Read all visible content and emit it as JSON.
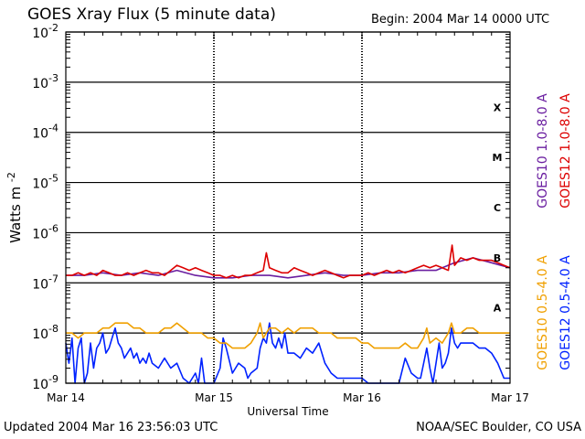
{
  "header": {
    "title": "GOES Xray Flux (5 minute data)",
    "begin": "Begin:  2004 Mar 14 0000 UTC"
  },
  "footer": {
    "updated": "Updated 2004 Mar 16 23:56:03 UTC",
    "credit": "NOAA/SEC Boulder, CO USA"
  },
  "chart_data": {
    "type": "line",
    "title": "GOES Xray Flux (5 minute data)",
    "xlabel": "Universal Time",
    "ylabel": "Watts m",
    "ylabel_superscript": "-2",
    "log_scale_y": true,
    "ylim": [
      1e-09,
      0.01
    ],
    "xlim_hours": [
      0,
      72
    ],
    "x_ticks": [
      {
        "hour": 0,
        "label": "Mar 14"
      },
      {
        "hour": 24,
        "label": "Mar 15"
      },
      {
        "hour": 48,
        "label": "Mar 16"
      },
      {
        "hour": 72,
        "label": "Mar 17"
      }
    ],
    "y_ticks": [
      {
        "exp": -2,
        "base": "10",
        "sup": "-2"
      },
      {
        "exp": -3,
        "base": "10",
        "sup": "-3"
      },
      {
        "exp": -4,
        "base": "10",
        "sup": "-4"
      },
      {
        "exp": -5,
        "base": "10",
        "sup": "-5"
      },
      {
        "exp": -6,
        "base": "10",
        "sup": "-6"
      },
      {
        "exp": -7,
        "base": "10",
        "sup": "-7"
      },
      {
        "exp": -8,
        "base": "10",
        "sup": "-8"
      },
      {
        "exp": -9,
        "base": "10",
        "sup": "-9"
      }
    ],
    "flare_classes": [
      {
        "label": "X",
        "log_flux": -3.5
      },
      {
        "label": "M",
        "log_flux": -4.5
      },
      {
        "label": "C",
        "log_flux": -5.5
      },
      {
        "label": "B",
        "log_flux": -6.5
      },
      {
        "label": "A",
        "log_flux": -7.5
      }
    ],
    "grid": "horizontal decade lines; dashed vertical day lines",
    "legend_placement": "right, vertical",
    "series": [
      {
        "name": "GOES12 0.5-4.0 A",
        "color": "#0022ff",
        "points": [
          [
            0,
            -8.2
          ],
          [
            0.5,
            -8.6
          ],
          [
            1,
            -8.1
          ],
          [
            1.5,
            -9.0
          ],
          [
            2,
            -8.3
          ],
          [
            2.5,
            -8.1
          ],
          [
            3,
            -9.0
          ],
          [
            3.5,
            -8.8
          ],
          [
            4,
            -8.2
          ],
          [
            4.5,
            -8.7
          ],
          [
            5,
            -8.3
          ],
          [
            5.5,
            -8.2
          ],
          [
            6,
            -8.0
          ],
          [
            6.5,
            -8.4
          ],
          [
            7,
            -8.3
          ],
          [
            7.5,
            -8.1
          ],
          [
            8,
            -7.9
          ],
          [
            8.5,
            -8.2
          ],
          [
            9,
            -8.3
          ],
          [
            9.5,
            -8.5
          ],
          [
            10,
            -8.4
          ],
          [
            10.5,
            -8.3
          ],
          [
            11,
            -8.5
          ],
          [
            11.5,
            -8.4
          ],
          [
            12,
            -8.6
          ],
          [
            12.5,
            -8.5
          ],
          [
            13,
            -8.6
          ],
          [
            13.5,
            -8.4
          ],
          [
            14,
            -8.6
          ],
          [
            15,
            -8.7
          ],
          [
            16,
            -8.5
          ],
          [
            17,
            -8.7
          ],
          [
            18,
            -8.6
          ],
          [
            19,
            -8.9
          ],
          [
            20,
            -9.0
          ],
          [
            21,
            -8.8
          ],
          [
            21.5,
            -9.0
          ],
          [
            22,
            -8.5
          ],
          [
            22.5,
            -9.0
          ],
          [
            24,
            -9.0
          ],
          [
            25,
            -8.7
          ],
          [
            25.5,
            -8.1
          ],
          [
            26,
            -8.3
          ],
          [
            27,
            -8.8
          ],
          [
            28,
            -8.6
          ],
          [
            29,
            -8.7
          ],
          [
            29.5,
            -8.9
          ],
          [
            30,
            -8.8
          ],
          [
            31,
            -8.7
          ],
          [
            31.5,
            -8.3
          ],
          [
            32,
            -8.1
          ],
          [
            32.5,
            -8.2
          ],
          [
            33,
            -7.8
          ],
          [
            33.5,
            -8.2
          ],
          [
            34,
            -8.3
          ],
          [
            34.5,
            -8.1
          ],
          [
            35,
            -8.3
          ],
          [
            35.5,
            -8.0
          ],
          [
            36,
            -8.4
          ],
          [
            37,
            -8.4
          ],
          [
            38,
            -8.5
          ],
          [
            39,
            -8.3
          ],
          [
            40,
            -8.4
          ],
          [
            41,
            -8.2
          ],
          [
            42,
            -8.6
          ],
          [
            43,
            -8.8
          ],
          [
            44,
            -8.9
          ],
          [
            45,
            -8.9
          ],
          [
            46,
            -8.9
          ],
          [
            47,
            -8.9
          ],
          [
            48,
            -8.9
          ],
          [
            49,
            -9.0
          ],
          [
            50,
            -9.0
          ],
          [
            51,
            -9.0
          ],
          [
            52,
            -9.0
          ],
          [
            53,
            -9.0
          ],
          [
            54,
            -9.0
          ],
          [
            55,
            -8.5
          ],
          [
            56,
            -8.8
          ],
          [
            57,
            -8.9
          ],
          [
            57.5,
            -8.9
          ],
          [
            58,
            -8.6
          ],
          [
            58.5,
            -8.3
          ],
          [
            59,
            -8.7
          ],
          [
            59.5,
            -9.0
          ],
          [
            60,
            -8.6
          ],
          [
            60.5,
            -8.2
          ],
          [
            61,
            -8.7
          ],
          [
            61.5,
            -8.6
          ],
          [
            62,
            -8.4
          ],
          [
            62.5,
            -7.9
          ],
          [
            63,
            -8.2
          ],
          [
            63.5,
            -8.3
          ],
          [
            64,
            -8.2
          ],
          [
            65,
            -8.2
          ],
          [
            66,
            -8.2
          ],
          [
            67,
            -8.3
          ],
          [
            68,
            -8.3
          ],
          [
            69,
            -8.4
          ],
          [
            70,
            -8.6
          ],
          [
            71,
            -8.9
          ],
          [
            72,
            -8.9
          ]
        ]
      },
      {
        "name": "GOES10 0.5-4.0 A",
        "color": "#f0a000",
        "points": [
          [
            0,
            -8.0
          ],
          [
            1,
            -8.0
          ],
          [
            2,
            -8.1
          ],
          [
            3,
            -8.0
          ],
          [
            4,
            -8.0
          ],
          [
            5,
            -8.0
          ],
          [
            6,
            -7.9
          ],
          [
            7,
            -7.9
          ],
          [
            8,
            -7.8
          ],
          [
            9,
            -7.8
          ],
          [
            10,
            -7.8
          ],
          [
            11,
            -7.9
          ],
          [
            12,
            -7.9
          ],
          [
            13,
            -8.0
          ],
          [
            14,
            -8.0
          ],
          [
            15,
            -8.0
          ],
          [
            16,
            -7.9
          ],
          [
            17,
            -7.9
          ],
          [
            18,
            -7.8
          ],
          [
            19,
            -7.9
          ],
          [
            20,
            -8.0
          ],
          [
            21,
            -8.0
          ],
          [
            22,
            -8.0
          ],
          [
            23,
            -8.1
          ],
          [
            24,
            -8.1
          ],
          [
            25,
            -8.2
          ],
          [
            26,
            -8.2
          ],
          [
            27,
            -8.3
          ],
          [
            28,
            -8.3
          ],
          [
            29,
            -8.3
          ],
          [
            30,
            -8.2
          ],
          [
            31,
            -8.0
          ],
          [
            31.5,
            -7.8
          ],
          [
            32,
            -8.1
          ],
          [
            33,
            -7.9
          ],
          [
            34,
            -7.9
          ],
          [
            35,
            -8.0
          ],
          [
            36,
            -7.9
          ],
          [
            37,
            -8.0
          ],
          [
            38,
            -7.9
          ],
          [
            39,
            -7.9
          ],
          [
            40,
            -7.9
          ],
          [
            41,
            -8.0
          ],
          [
            42,
            -8.0
          ],
          [
            43,
            -8.0
          ],
          [
            44,
            -8.1
          ],
          [
            45,
            -8.1
          ],
          [
            46,
            -8.1
          ],
          [
            47,
            -8.1
          ],
          [
            48,
            -8.2
          ],
          [
            49,
            -8.2
          ],
          [
            50,
            -8.3
          ],
          [
            51,
            -8.3
          ],
          [
            52,
            -8.3
          ],
          [
            53,
            -8.3
          ],
          [
            54,
            -8.3
          ],
          [
            55,
            -8.2
          ],
          [
            56,
            -8.3
          ],
          [
            57,
            -8.3
          ],
          [
            58,
            -8.1
          ],
          [
            58.5,
            -7.9
          ],
          [
            59,
            -8.2
          ],
          [
            60,
            -8.1
          ],
          [
            61,
            -8.2
          ],
          [
            62,
            -8.0
          ],
          [
            62.5,
            -7.8
          ],
          [
            63,
            -8.0
          ],
          [
            64,
            -8.0
          ],
          [
            65,
            -7.9
          ],
          [
            66,
            -7.9
          ],
          [
            67,
            -8.0
          ],
          [
            68,
            -8.0
          ],
          [
            69,
            -8.0
          ],
          [
            70,
            -8.0
          ],
          [
            71,
            -8.0
          ],
          [
            72,
            -8.0
          ]
        ]
      },
      {
        "name": "GOES10 1.0-8.0 A",
        "color": "#6a1ea0",
        "points": [
          [
            0,
            -6.85
          ],
          [
            3,
            -6.85
          ],
          [
            6,
            -6.8
          ],
          [
            9,
            -6.85
          ],
          [
            12,
            -6.8
          ],
          [
            15,
            -6.85
          ],
          [
            18,
            -6.75
          ],
          [
            21,
            -6.85
          ],
          [
            24,
            -6.9
          ],
          [
            27,
            -6.9
          ],
          [
            30,
            -6.85
          ],
          [
            33,
            -6.85
          ],
          [
            36,
            -6.9
          ],
          [
            39,
            -6.85
          ],
          [
            42,
            -6.8
          ],
          [
            45,
            -6.85
          ],
          [
            48,
            -6.85
          ],
          [
            51,
            -6.8
          ],
          [
            54,
            -6.8
          ],
          [
            57,
            -6.75
          ],
          [
            60,
            -6.75
          ],
          [
            63,
            -6.6
          ],
          [
            66,
            -6.5
          ],
          [
            69,
            -6.6
          ],
          [
            72,
            -6.7
          ]
        ]
      },
      {
        "name": "GOES12 1.0-8.0 A",
        "color": "#dd0000",
        "points": [
          [
            0,
            -6.85
          ],
          [
            1,
            -6.85
          ],
          [
            2,
            -6.8
          ],
          [
            3,
            -6.85
          ],
          [
            4,
            -6.8
          ],
          [
            5,
            -6.85
          ],
          [
            6,
            -6.75
          ],
          [
            7,
            -6.8
          ],
          [
            8,
            -6.85
          ],
          [
            9,
            -6.85
          ],
          [
            10,
            -6.8
          ],
          [
            11,
            -6.85
          ],
          [
            12,
            -6.8
          ],
          [
            13,
            -6.75
          ],
          [
            14,
            -6.8
          ],
          [
            15,
            -6.8
          ],
          [
            16,
            -6.85
          ],
          [
            17,
            -6.75
          ],
          [
            18,
            -6.65
          ],
          [
            19,
            -6.7
          ],
          [
            20,
            -6.75
          ],
          [
            21,
            -6.7
          ],
          [
            22,
            -6.75
          ],
          [
            23,
            -6.8
          ],
          [
            24,
            -6.85
          ],
          [
            25,
            -6.85
          ],
          [
            26,
            -6.9
          ],
          [
            27,
            -6.85
          ],
          [
            28,
            -6.9
          ],
          [
            29,
            -6.85
          ],
          [
            30,
            -6.85
          ],
          [
            31,
            -6.8
          ],
          [
            32,
            -6.75
          ],
          [
            32.5,
            -6.4
          ],
          [
            33,
            -6.7
          ],
          [
            34,
            -6.75
          ],
          [
            35,
            -6.8
          ],
          [
            36,
            -6.8
          ],
          [
            37,
            -6.7
          ],
          [
            38,
            -6.75
          ],
          [
            39,
            -6.8
          ],
          [
            40,
            -6.85
          ],
          [
            41,
            -6.8
          ],
          [
            42,
            -6.75
          ],
          [
            43,
            -6.8
          ],
          [
            44,
            -6.85
          ],
          [
            45,
            -6.9
          ],
          [
            46,
            -6.85
          ],
          [
            47,
            -6.85
          ],
          [
            48,
            -6.85
          ],
          [
            49,
            -6.8
          ],
          [
            50,
            -6.85
          ],
          [
            51,
            -6.8
          ],
          [
            52,
            -6.75
          ],
          [
            53,
            -6.8
          ],
          [
            54,
            -6.75
          ],
          [
            55,
            -6.8
          ],
          [
            56,
            -6.75
          ],
          [
            57,
            -6.7
          ],
          [
            58,
            -6.65
          ],
          [
            59,
            -6.7
          ],
          [
            60,
            -6.65
          ],
          [
            61,
            -6.7
          ],
          [
            62,
            -6.75
          ],
          [
            62.6,
            -6.25
          ],
          [
            63,
            -6.65
          ],
          [
            64,
            -6.5
          ],
          [
            65,
            -6.55
          ],
          [
            66,
            -6.5
          ],
          [
            67,
            -6.55
          ],
          [
            68,
            -6.55
          ],
          [
            69,
            -6.55
          ],
          [
            70,
            -6.6
          ],
          [
            71,
            -6.65
          ],
          [
            72,
            -6.7
          ]
        ]
      }
    ]
  }
}
